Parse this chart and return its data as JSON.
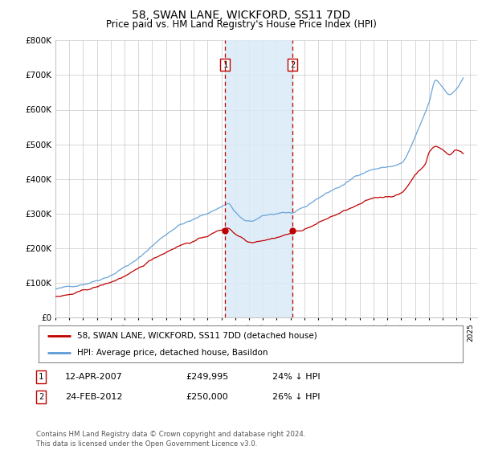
{
  "title": "58, SWAN LANE, WICKFORD, SS11 7DD",
  "subtitle": "Price paid vs. HM Land Registry's House Price Index (HPI)",
  "ylim": [
    0,
    800000
  ],
  "yticks": [
    0,
    100000,
    200000,
    300000,
    400000,
    500000,
    600000,
    700000,
    800000
  ],
  "ytick_labels": [
    "£0",
    "£100K",
    "£200K",
    "£300K",
    "£400K",
    "£500K",
    "£600K",
    "£700K",
    "£800K"
  ],
  "hpi_color": "#5b9bd5",
  "price_color": "#c00000",
  "transaction1_date": 2007.28,
  "transaction1_price": 249995,
  "transaction2_date": 2012.15,
  "transaction2_price": 250000,
  "shade_color": "#daeaf7",
  "legend_line1": "58, SWAN LANE, WICKFORD, SS11 7DD (detached house)",
  "legend_line2": "HPI: Average price, detached house, Basildon",
  "table_data": [
    [
      "1",
      "12-APR-2007",
      "£249,995",
      "24% ↓ HPI"
    ],
    [
      "2",
      "24-FEB-2012",
      "£250,000",
      "26% ↓ HPI"
    ]
  ],
  "footnote": "Contains HM Land Registry data © Crown copyright and database right 2024.\nThis data is licensed under the Open Government Licence v3.0.",
  "background_color": "#ffffff",
  "grid_color": "#c8c8c8",
  "xmin": 1995.0,
  "xmax": 2025.5
}
